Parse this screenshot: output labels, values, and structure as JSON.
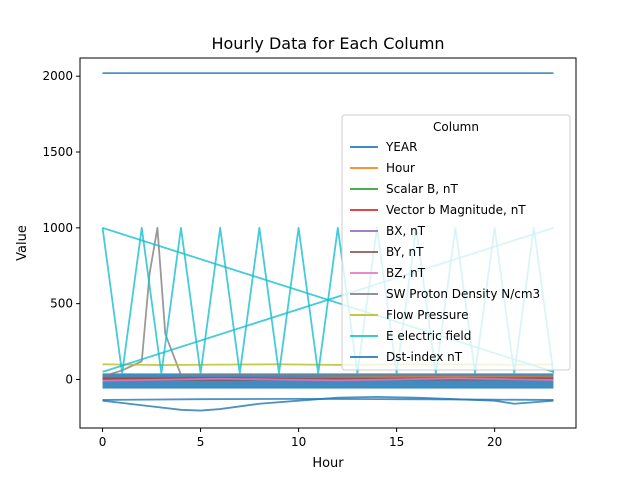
{
  "chart_data": {
    "type": "line",
    "title": "Hourly Data for Each Column",
    "xlabel": "Hour",
    "ylabel": "Value",
    "xlim": [
      -1.15,
      24.15
    ],
    "ylim": [
      -320,
      2120
    ],
    "xticks": [
      0,
      5,
      10,
      15,
      20
    ],
    "yticks": [
      0,
      500,
      1000,
      1500,
      2000
    ],
    "grid": false,
    "legend": {
      "title": "Column",
      "placement": "right",
      "entries": [
        {
          "name": "YEAR",
          "color": "#1f77b4"
        },
        {
          "name": "Hour",
          "color": "#ff7f0e"
        },
        {
          "name": "Scalar B, nT",
          "color": "#2ca02c"
        },
        {
          "name": "Vector b Magnitude, nT",
          "color": "#d62728"
        },
        {
          "name": "BX, nT",
          "color": "#9467bd"
        },
        {
          "name": "BY, nT",
          "color": "#8c564b"
        },
        {
          "name": "BZ, nT",
          "color": "#e377c2"
        },
        {
          "name": "SW Proton Density N/cm3",
          "color": "#7f7f7f"
        },
        {
          "name": "Flow Pressure",
          "color": "#bcbd22"
        },
        {
          "name": "E electric field",
          "color": "#17becf"
        },
        {
          "name": "Dst-index nT",
          "color": "#1f77b4"
        }
      ]
    },
    "series": [
      {
        "name": "YEAR",
        "color": "#1f77b4",
        "x": [
          0,
          23
        ],
        "y": [
          2020,
          2020
        ]
      },
      {
        "name": "Hour",
        "color": "#ff7f0e",
        "x": [
          0,
          23
        ],
        "y": [
          0,
          23
        ]
      },
      {
        "name": "Scalar B, nT",
        "color": "#2ca02c",
        "x": [
          0,
          6,
          12,
          18,
          23
        ],
        "y": [
          8,
          10,
          6,
          9,
          7
        ]
      },
      {
        "name": "Vector b Magnitude, nT",
        "color": "#d62728",
        "x": [
          0,
          6,
          12,
          18,
          23
        ],
        "y": [
          6,
          8,
          5,
          7,
          6
        ]
      },
      {
        "name": "BX, nT",
        "color": "#9467bd",
        "x": [
          0,
          6,
          12,
          18,
          23
        ],
        "y": [
          -5,
          4,
          -3,
          5,
          -2
        ]
      },
      {
        "name": "BY, nT",
        "color": "#8c564b",
        "x": [
          0,
          6,
          12,
          18,
          23
        ],
        "y": [
          3,
          -4,
          6,
          -2,
          4
        ]
      },
      {
        "name": "BZ, nT",
        "color": "#e377c2",
        "x": [
          0,
          6,
          12,
          18,
          23
        ],
        "y": [
          -8,
          5,
          -6,
          7,
          -3
        ]
      },
      {
        "name": "SW Proton Density N/cm3",
        "color": "#7f7f7f",
        "x": [
          0,
          1,
          2,
          2.4,
          2.8,
          3.2,
          4,
          23
        ],
        "y": [
          20,
          60,
          120,
          700,
          1000,
          300,
          30,
          25
        ]
      },
      {
        "name": "Flow Pressure",
        "color": "#bcbd22",
        "x": [
          0,
          3,
          6,
          9,
          12,
          15,
          18,
          21,
          23
        ],
        "y": [
          100,
          95,
          98,
          100,
          96,
          99,
          100,
          97,
          100
        ]
      },
      {
        "name": "E electric field",
        "color": "#17becf",
        "x": [
          0,
          1,
          2,
          3,
          4,
          5,
          6,
          7,
          8,
          9,
          10,
          11,
          12,
          13,
          14,
          15,
          16,
          17,
          18,
          19,
          20,
          21,
          22,
          23
        ],
        "y": [
          1000,
          40,
          1000,
          40,
          1000,
          40,
          1000,
          40,
          1000,
          40,
          1000,
          40,
          1000,
          40,
          1000,
          40,
          1000,
          40,
          1000,
          40,
          1000,
          40,
          1000,
          40
        ]
      },
      {
        "name": "E electric field",
        "color": "#17becf",
        "x": [
          0,
          23
        ],
        "y": [
          1000,
          50
        ]
      },
      {
        "name": "E electric field",
        "color": "#17becf",
        "x": [
          0,
          23
        ],
        "y": [
          50,
          1000
        ]
      },
      {
        "name": "Dst-index nT",
        "color": "#1f77b4",
        "x": [
          0,
          2,
          4,
          5,
          6,
          8,
          10,
          12,
          14,
          16,
          18,
          20,
          21,
          22,
          23
        ],
        "y": [
          -140,
          -170,
          -200,
          -205,
          -195,
          -160,
          -140,
          -120,
          -115,
          -120,
          -130,
          -140,
          -160,
          -150,
          -140
        ]
      },
      {
        "name": "Dst-index nT",
        "color": "#1f77b4",
        "x": [
          0,
          5,
          10,
          15,
          20,
          23
        ],
        "y": [
          -135,
          -130,
          -128,
          -130,
          -133,
          -135
        ]
      }
    ],
    "band": {
      "color": "#1f77b4",
      "x": [
        0,
        23
      ],
      "y_low": -60,
      "y_high": 40
    }
  }
}
